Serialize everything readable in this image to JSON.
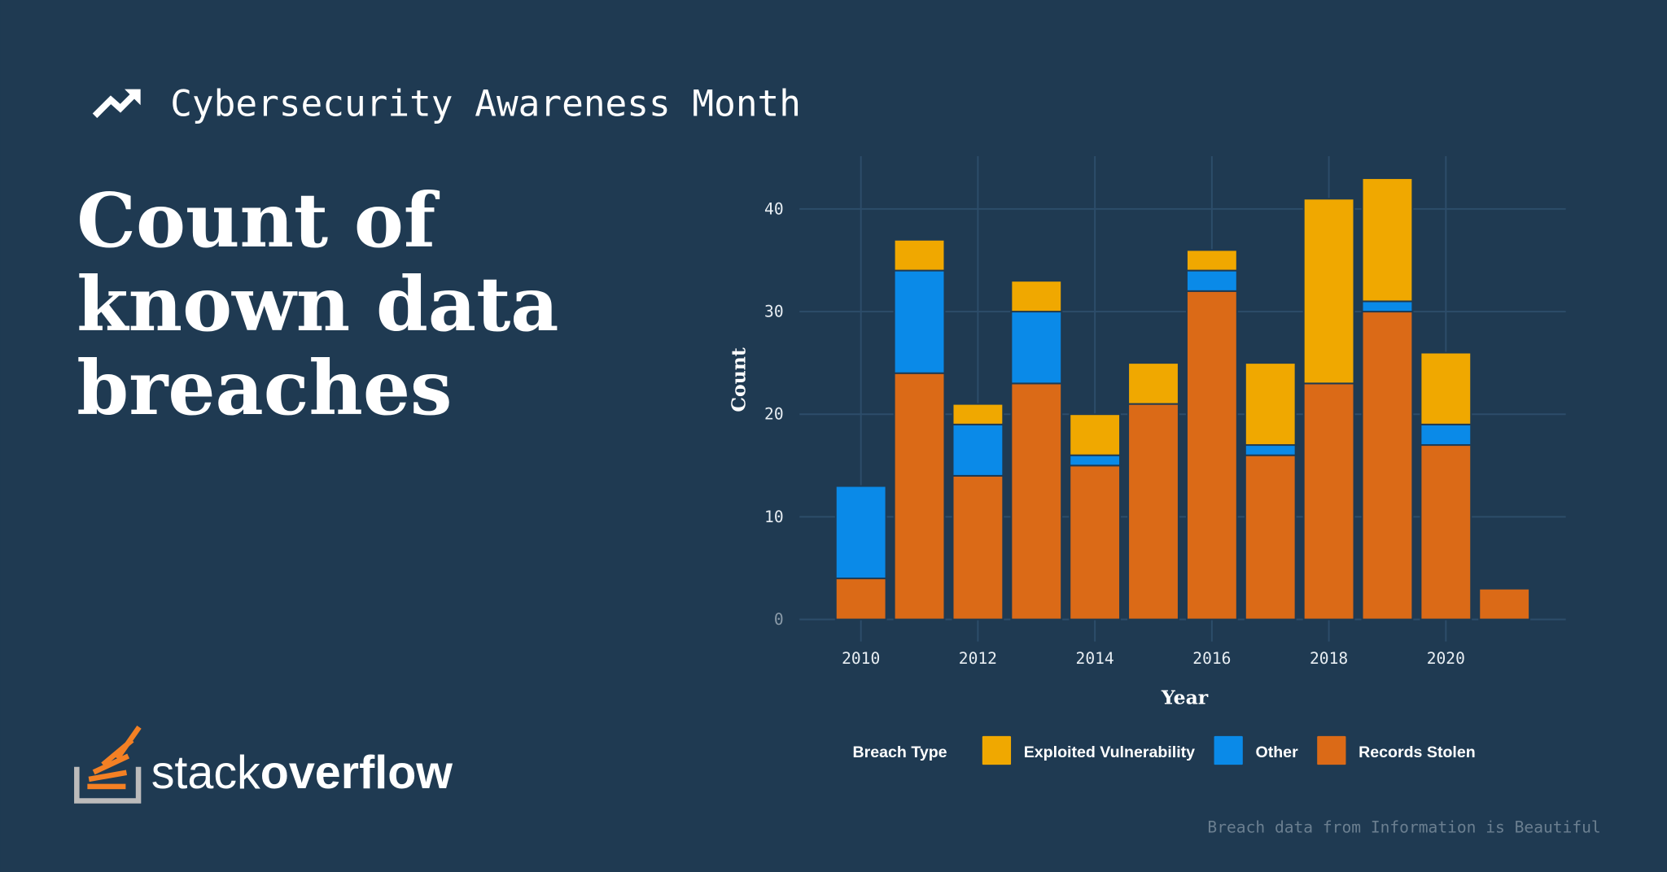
{
  "header": {
    "kicker": "Cybersecurity Awareness Month",
    "title_lines": [
      "Count of",
      "known data",
      "breaches"
    ]
  },
  "brand": {
    "light": "stack",
    "bold": "overflow"
  },
  "source": "Breach data from Information is Beautiful",
  "chart_data": {
    "type": "stacked_bar",
    "x_label": "Year",
    "y_label": "Count",
    "legend_title": "Breach Type",
    "x": [
      2010,
      2011,
      2012,
      2013,
      2014,
      2015,
      2016,
      2017,
      2018,
      2019,
      2020,
      2021
    ],
    "series": [
      {
        "name": "Records Stolen",
        "color": "#db6a17",
        "values": [
          4,
          24,
          14,
          23,
          15,
          21,
          32,
          16,
          23,
          30,
          17,
          3
        ]
      },
      {
        "name": "Other",
        "color": "#0a8ae8",
        "values": [
          9,
          10,
          5,
          7,
          1,
          0,
          2,
          1,
          0,
          1,
          2,
          0
        ]
      },
      {
        "name": "Exploited Vulnerability",
        "color": "#f0a800",
        "values": [
          0,
          3,
          2,
          3,
          4,
          4,
          2,
          8,
          18,
          12,
          7,
          0
        ]
      }
    ],
    "legend_order": [
      2,
      1,
      0
    ],
    "xlim": [
      2008.95,
      2022.05
    ],
    "xticks": [
      2010,
      2012,
      2014,
      2016,
      2018,
      2020
    ],
    "ylim": [
      -2.15,
      45.15
    ],
    "yticks": [
      0,
      10,
      20,
      30,
      40
    ],
    "grid": true
  }
}
